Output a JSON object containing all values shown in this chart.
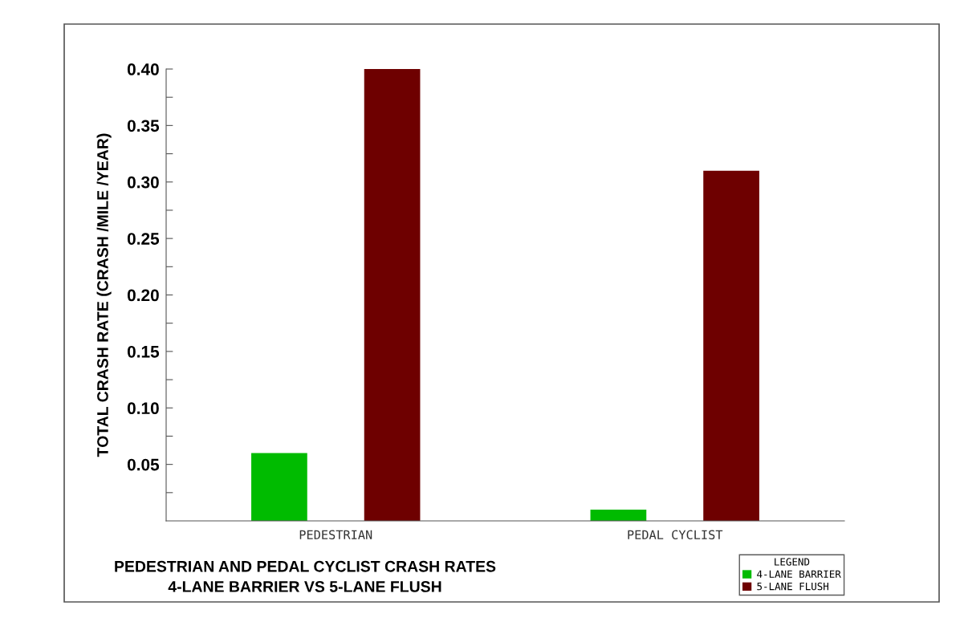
{
  "chart_data": {
    "type": "bar",
    "title": "PEDESTRIAN AND PEDAL CYCLIST CRASH RATES\n4-LANE BARRIER VS 5-LANE FLUSH",
    "ylabel": "TOTAL CRASH RATE (CRASH /MILE /YEAR)",
    "categories": [
      "PEDESTRIAN",
      "PEDAL CYCLIST"
    ],
    "series": [
      {
        "name": "4-LANE BARRIER",
        "color": "#00bb00",
        "values": [
          0.06,
          0.01
        ]
      },
      {
        "name": "5-LANE FLUSH",
        "color": "#6e0000",
        "values": [
          0.4,
          0.31
        ]
      }
    ],
    "legend_title": "LEGEND",
    "legend": "bottom right",
    "ylim": [
      0,
      0.4
    ],
    "yticks": [
      {
        "value": 0.025,
        "label": null
      },
      {
        "value": 0.05,
        "label": "0.05"
      },
      {
        "value": 0.075,
        "label": null
      },
      {
        "value": 0.1,
        "label": "0.10"
      },
      {
        "value": 0.125,
        "label": null
      },
      {
        "value": 0.15,
        "label": "0.15"
      },
      {
        "value": 0.175,
        "label": null
      },
      {
        "value": 0.2,
        "label": "0.20"
      },
      {
        "value": 0.225,
        "label": null
      },
      {
        "value": 0.25,
        "label": "0.25"
      },
      {
        "value": 0.275,
        "label": null
      },
      {
        "value": 0.3,
        "label": "0.30"
      },
      {
        "value": 0.325,
        "label": null
      },
      {
        "value": 0.35,
        "label": "0.35"
      },
      {
        "value": 0.375,
        "label": null
      },
      {
        "value": 0.4,
        "label": "0.40"
      }
    ],
    "grid": false
  }
}
